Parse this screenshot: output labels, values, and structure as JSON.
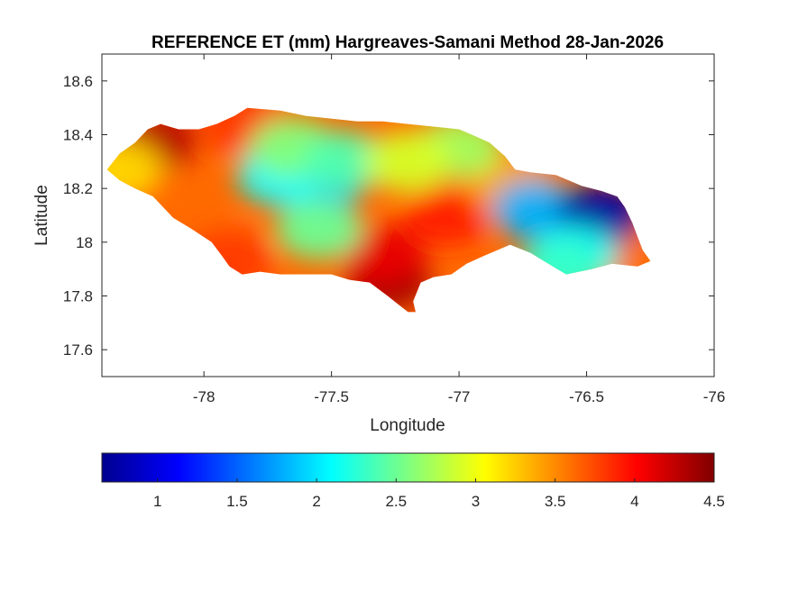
{
  "title": "REFERENCE ET (mm) Hargreaves-Samani Method  28-Jan-2026",
  "axes": {
    "xlabel": "Longitude",
    "ylabel": "Latitude",
    "xlim": [
      -78.4,
      -76
    ],
    "ylim": [
      17.5,
      18.7
    ],
    "xticks": [
      -78,
      -77.5,
      -77,
      -76.5,
      -76
    ],
    "xtick_labels": [
      "-78",
      "-77.5",
      "-77",
      "-76.5",
      "-76"
    ],
    "yticks": [
      17.6,
      17.8,
      18,
      18.2,
      18.4,
      18.6
    ],
    "ytick_labels": [
      "17.6",
      "17.8",
      "18",
      "18.2",
      "18.4",
      "18.6"
    ],
    "grid": false
  },
  "colorbar": {
    "orientation": "horizontal",
    "location": "below",
    "colormap": "jet",
    "range": [
      0.65,
      4.5
    ],
    "ticks": [
      1,
      1.5,
      2,
      2.5,
      3,
      3.5,
      4,
      4.5
    ],
    "tick_labels": [
      "1",
      "1.5",
      "2",
      "2.5",
      "3",
      "3.5",
      "4",
      "4.5"
    ]
  },
  "map": {
    "region": "Jamaica",
    "variable": "Reference ET (mm)",
    "colors": {
      "low": "#00008f",
      "mid": "#00ffff",
      "high": "#800000"
    },
    "hotspots": [
      {
        "lon": -78.2,
        "lat": 18.38,
        "value": 4.3
      },
      {
        "lon": -78.33,
        "lat": 18.27,
        "value": 3.2
      },
      {
        "lon": -77.28,
        "lat": 17.86,
        "value": 4.4
      },
      {
        "lon": -77.3,
        "lat": 17.95,
        "value": 4.1
      },
      {
        "lon": -77.05,
        "lat": 18.1,
        "value": 3.9
      },
      {
        "lon": -77.9,
        "lat": 17.93,
        "value": 3.8
      },
      {
        "lon": -77.85,
        "lat": 18.44,
        "value": 3.8
      },
      {
        "lon": -76.8,
        "lat": 18.22,
        "value": 3.4
      },
      {
        "lon": -76.3,
        "lat": 17.93,
        "value": 3.6
      },
      {
        "lon": -77.55,
        "lat": 18.22,
        "value": 1.8
      },
      {
        "lon": -77.7,
        "lat": 18.25,
        "value": 2.1
      },
      {
        "lon": -77.65,
        "lat": 18.35,
        "value": 2.6
      },
      {
        "lon": -77.45,
        "lat": 18.3,
        "value": 2.4
      },
      {
        "lon": -77.55,
        "lat": 18.05,
        "value": 2.5
      },
      {
        "lon": -77.0,
        "lat": 18.35,
        "value": 2.7
      },
      {
        "lon": -77.2,
        "lat": 18.3,
        "value": 2.9
      },
      {
        "lon": -76.7,
        "lat": 18.12,
        "value": 1.8
      },
      {
        "lon": -76.45,
        "lat": 18.1,
        "value": 0.8
      },
      {
        "lon": -76.55,
        "lat": 17.95,
        "value": 2.1
      },
      {
        "lon": -76.6,
        "lat": 17.9,
        "value": 2.3
      }
    ]
  }
}
